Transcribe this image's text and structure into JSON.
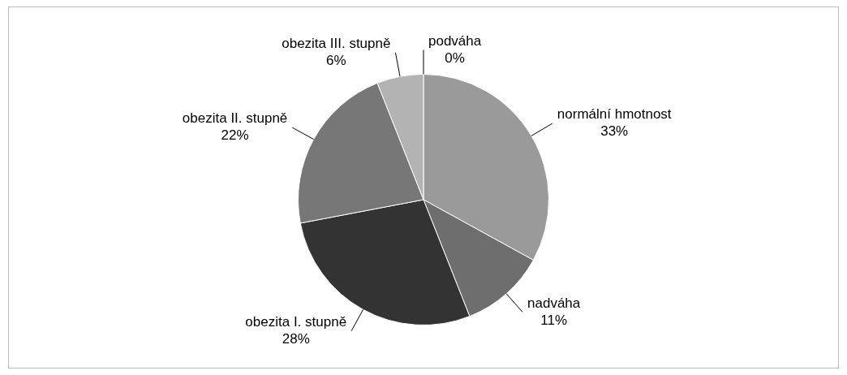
{
  "chart_data": {
    "type": "pie",
    "categories": [
      "podváha",
      "normální hmotnost",
      "nadváha",
      "obezita I. stupně",
      "obezita II. stupně",
      "obezita III. stupně"
    ],
    "values": [
      0,
      33,
      11,
      28,
      22,
      6
    ],
    "value_labels": [
      "0%",
      "33%",
      "11%",
      "28%",
      "22%",
      "6%"
    ],
    "colors": [
      "#1a1a1a",
      "#9a9a9a",
      "#6e6e6e",
      "#333333",
      "#777777",
      "#b3b3b3"
    ]
  }
}
